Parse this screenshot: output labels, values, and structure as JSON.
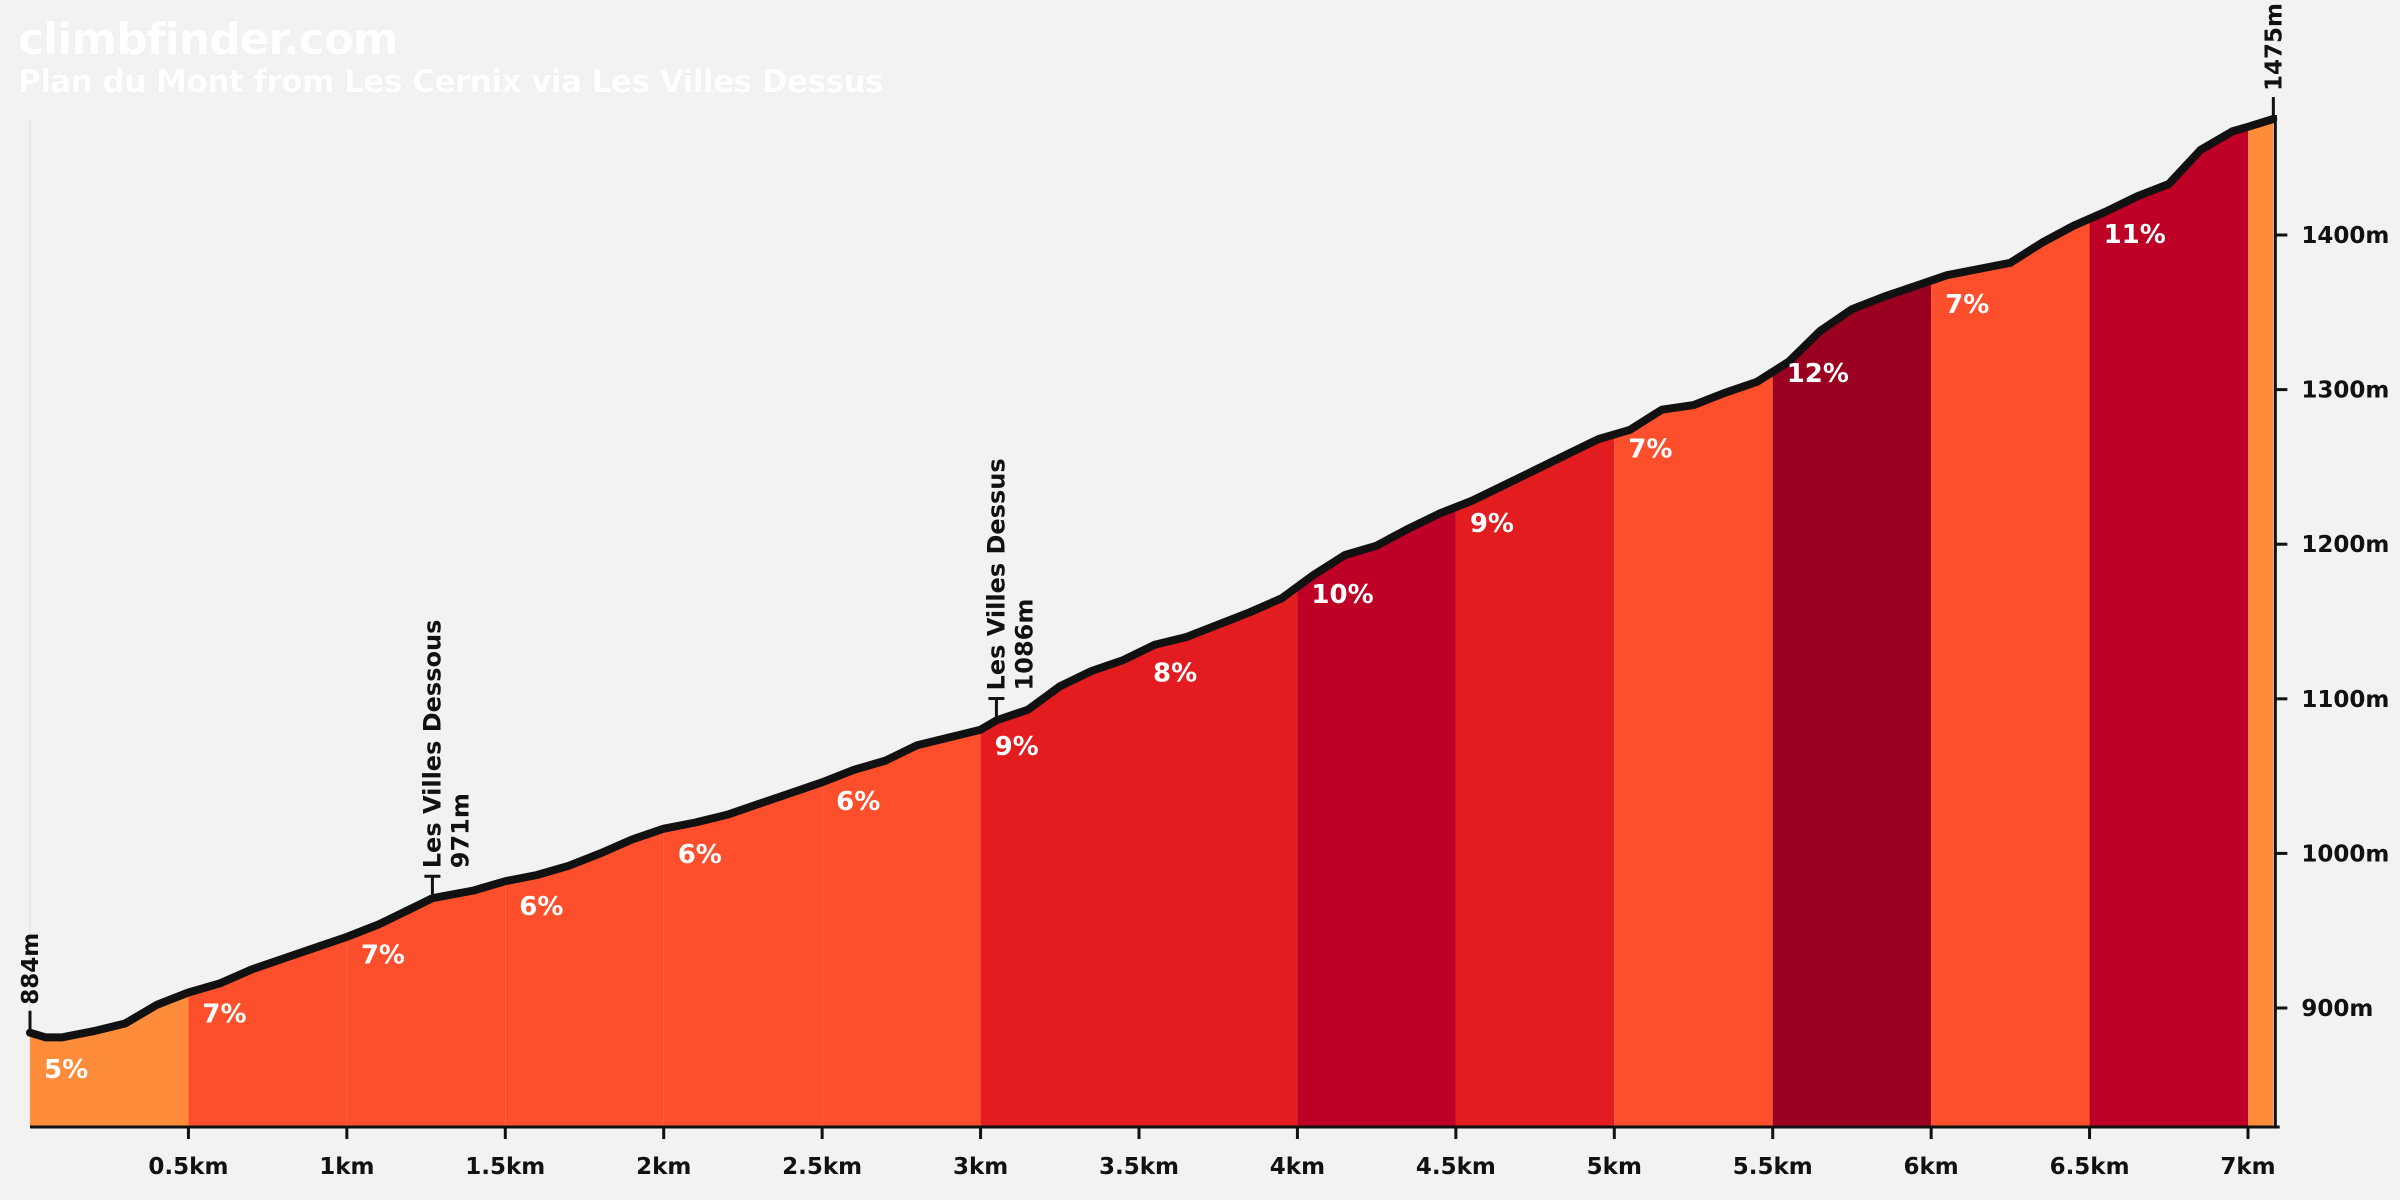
{
  "brand": "climbfinder.com",
  "title": "Plan du Mont from Les Cernix via Les Villes Dessus",
  "colors": {
    "background": "#f2f2f2",
    "grade_5": "#ff8c3a",
    "grade_6_7": "#fe4f2c",
    "grade_8_9": "#e31c1f",
    "grade_10_11": "#bf0026",
    "grade_12": "#9a0020",
    "profile_line": "#111111"
  },
  "chart_data": {
    "type": "area",
    "xlim": [
      0,
      7.1
    ],
    "ylim": [
      820,
      1475
    ],
    "x_ticks": [
      0.5,
      1,
      1.5,
      2,
      2.5,
      3,
      3.5,
      4,
      4.5,
      5,
      5.5,
      6,
      6.5,
      7
    ],
    "x_tick_labels": [
      "0.5km",
      "1km",
      "1.5km",
      "2km",
      "2.5km",
      "3km",
      "3.5km",
      "4km",
      "4.5km",
      "5km",
      "5.5km",
      "6km",
      "6.5km",
      "7km"
    ],
    "y_ticks": [
      900,
      1000,
      1100,
      1200,
      1300,
      1400
    ],
    "y_tick_labels": [
      "900m",
      "1000m",
      "1100m",
      "1200m",
      "1300m",
      "1400m"
    ],
    "start_label": "884m",
    "end_label": "1475m",
    "profile": [
      [
        0,
        884
      ],
      [
        0.05,
        881
      ],
      [
        0.1,
        881
      ],
      [
        0.2,
        885
      ],
      [
        0.3,
        890
      ],
      [
        0.4,
        902
      ],
      [
        0.5,
        910
      ],
      [
        0.6,
        916
      ],
      [
        0.7,
        925
      ],
      [
        0.8,
        932
      ],
      [
        0.9,
        939
      ],
      [
        1.0,
        946
      ],
      [
        1.1,
        954
      ],
      [
        1.2,
        964
      ],
      [
        1.27,
        971
      ],
      [
        1.4,
        976
      ],
      [
        1.5,
        982
      ],
      [
        1.6,
        986
      ],
      [
        1.7,
        992
      ],
      [
        1.8,
        1000
      ],
      [
        1.9,
        1009
      ],
      [
        2.0,
        1016
      ],
      [
        2.1,
        1020
      ],
      [
        2.2,
        1025
      ],
      [
        2.3,
        1032
      ],
      [
        2.4,
        1039
      ],
      [
        2.5,
        1046
      ],
      [
        2.6,
        1054
      ],
      [
        2.7,
        1060
      ],
      [
        2.8,
        1070
      ],
      [
        2.9,
        1075
      ],
      [
        3.0,
        1080
      ],
      [
        3.05,
        1086
      ],
      [
        3.15,
        1093
      ],
      [
        3.25,
        1108
      ],
      [
        3.35,
        1118
      ],
      [
        3.45,
        1125
      ],
      [
        3.55,
        1135
      ],
      [
        3.65,
        1140
      ],
      [
        3.75,
        1148
      ],
      [
        3.85,
        1156
      ],
      [
        3.95,
        1165
      ],
      [
        4.05,
        1180
      ],
      [
        4.15,
        1193
      ],
      [
        4.25,
        1199
      ],
      [
        4.35,
        1210
      ],
      [
        4.45,
        1220
      ],
      [
        4.55,
        1228
      ],
      [
        4.65,
        1238
      ],
      [
        4.75,
        1248
      ],
      [
        4.85,
        1258
      ],
      [
        4.95,
        1268
      ],
      [
        5.05,
        1274
      ],
      [
        5.15,
        1287
      ],
      [
        5.25,
        1290
      ],
      [
        5.35,
        1298
      ],
      [
        5.45,
        1305
      ],
      [
        5.55,
        1318
      ],
      [
        5.65,
        1338
      ],
      [
        5.75,
        1352
      ],
      [
        5.85,
        1360
      ],
      [
        5.95,
        1367
      ],
      [
        6.05,
        1374
      ],
      [
        6.15,
        1378
      ],
      [
        6.25,
        1382
      ],
      [
        6.35,
        1395
      ],
      [
        6.45,
        1406
      ],
      [
        6.55,
        1415
      ],
      [
        6.65,
        1425
      ],
      [
        6.75,
        1433
      ],
      [
        6.85,
        1455
      ],
      [
        6.95,
        1467
      ],
      [
        7.0,
        1470
      ],
      [
        7.08,
        1475
      ]
    ],
    "segments": [
      {
        "start": 0,
        "end": 0.5,
        "grade": "5%",
        "color": "#ff8c3a"
      },
      {
        "start": 0.5,
        "end": 1,
        "grade": "7%",
        "color": "#fe4f2c"
      },
      {
        "start": 1,
        "end": 1.5,
        "grade": "7%",
        "color": "#fe4f2c"
      },
      {
        "start": 1.5,
        "end": 2,
        "grade": "6%",
        "color": "#fe4f2c"
      },
      {
        "start": 2,
        "end": 2.5,
        "grade": "6%",
        "color": "#fe4f2c"
      },
      {
        "start": 2.5,
        "end": 3,
        "grade": "6%",
        "color": "#fe4f2c"
      },
      {
        "start": 3,
        "end": 3.5,
        "grade": "9%",
        "color": "#e31c1f"
      },
      {
        "start": 3.5,
        "end": 4,
        "grade": "8%",
        "color": "#e31c1f"
      },
      {
        "start": 4,
        "end": 4.5,
        "grade": "10%",
        "color": "#bf0026"
      },
      {
        "start": 4.5,
        "end": 5,
        "grade": "9%",
        "color": "#e31c1f"
      },
      {
        "start": 5,
        "end": 5.5,
        "grade": "7%",
        "color": "#fe4f2c"
      },
      {
        "start": 5.5,
        "end": 6,
        "grade": "12%",
        "color": "#9a0020"
      },
      {
        "start": 6,
        "end": 6.5,
        "grade": "7%",
        "color": "#fe4f2c"
      },
      {
        "start": 6.5,
        "end": 7,
        "grade": "11%",
        "color": "#bf0026"
      },
      {
        "start": 7,
        "end": 7.08,
        "grade": "",
        "color": "#ff8c3a"
      }
    ],
    "waypoints": [
      {
        "name": "Les Villes Dessous",
        "elevation_label": "971m",
        "x": 1.27,
        "y": 971
      },
      {
        "name": "Les Villes Dessus",
        "elevation_label": "1086m",
        "x": 3.05,
        "y": 1086
      }
    ]
  }
}
